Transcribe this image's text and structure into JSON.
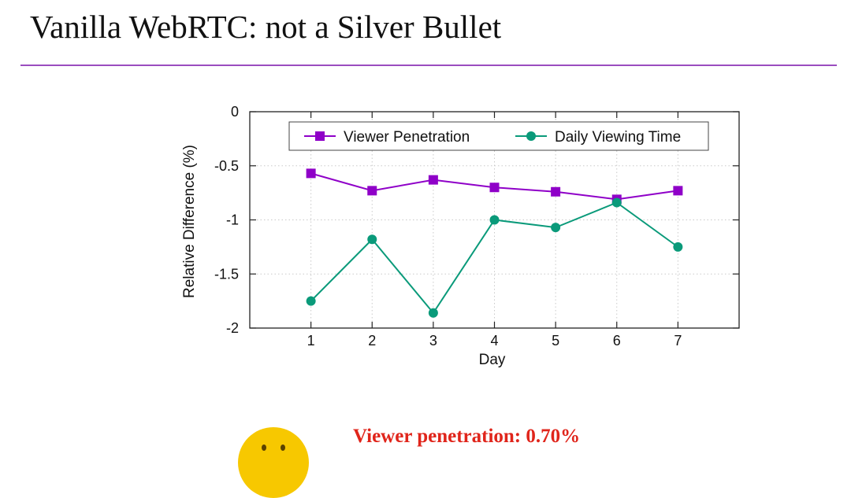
{
  "slide": {
    "title": "Vanilla WebRTC: not a Silver Bullet",
    "accent_color": "#9b4dbf"
  },
  "chart_data": {
    "type": "line",
    "title": "",
    "xlabel": "Day",
    "ylabel": "Relative Difference (%)",
    "x": [
      1,
      2,
      3,
      4,
      5,
      6,
      7
    ],
    "xlim": [
      0,
      8
    ],
    "ylim": [
      -2,
      0
    ],
    "yticks": [
      0,
      -0.5,
      -1,
      -1.5,
      -2
    ],
    "ytick_labels": [
      "0",
      "-0.5",
      "-1",
      "-1.5",
      "-2"
    ],
    "xticks": [
      1,
      2,
      3,
      4,
      5,
      6,
      7
    ],
    "xtick_labels": [
      "1",
      "2",
      "3",
      "4",
      "5",
      "6",
      "7"
    ],
    "grid": true,
    "legend_position": "top",
    "series": [
      {
        "name": "Viewer Penetration",
        "marker": "square",
        "color": "#8f00c8",
        "values": [
          -0.57,
          -0.73,
          -0.63,
          -0.7,
          -0.74,
          -0.81,
          -0.73
        ]
      },
      {
        "name": "Daily Viewing Time",
        "marker": "circle",
        "color": "#0a9a7a",
        "values": [
          -1.75,
          -1.18,
          -1.86,
          -1.0,
          -1.07,
          -0.84,
          -1.25
        ]
      }
    ]
  },
  "footer": {
    "emoji_icon": "smiley-face-icon",
    "emoji_color": "#f7c800",
    "caption": "Viewer penetration: 0.70%",
    "caption_color": "#e0251b"
  }
}
